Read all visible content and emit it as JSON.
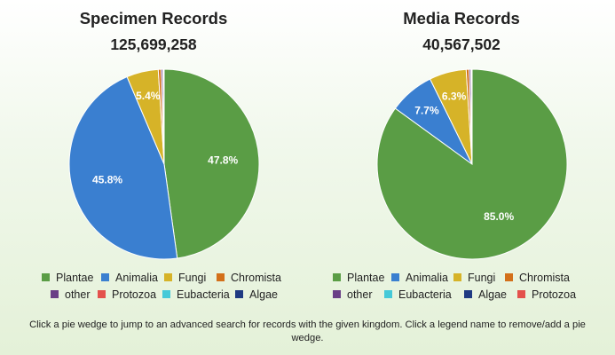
{
  "colors": {
    "Plantae": "#5a9d45",
    "Animalia": "#3a7fd0",
    "Fungi": "#d6b328",
    "Chromista": "#d3701a",
    "other": "#6a3f86",
    "Protozoa": "#e4514c",
    "Eubacteria": "#45c9d8",
    "Algae": "#1f3a82"
  },
  "specimen": {
    "title": "Specimen Records",
    "total": "125,699,258",
    "legend": [
      [
        "Plantae",
        "Animalia",
        "Fungi",
        "Chromista"
      ],
      [
        "other",
        "Protozoa",
        "Eubacteria",
        "Algae"
      ]
    ]
  },
  "media": {
    "title": "Media Records",
    "total": "40,567,502",
    "legend": [
      [
        "Plantae",
        "Animalia",
        "Fungi",
        "Chromista"
      ],
      [
        "other",
        "Eubacteria",
        "Algae",
        "Protozoa"
      ]
    ]
  },
  "chart_data": [
    {
      "type": "pie",
      "title": "Specimen Records",
      "subtitle": "125,699,258",
      "labels": [
        "Plantae",
        "Animalia",
        "Fungi",
        "Chromista",
        "other",
        "Protozoa",
        "Eubacteria",
        "Algae"
      ],
      "values": [
        47.8,
        45.8,
        5.4,
        0.5,
        0.3,
        0.1,
        0.05,
        0.05
      ],
      "data_labels": [
        "47.8%",
        "45.8%",
        "5.4%",
        "",
        "",
        "",
        "",
        ""
      ],
      "legend_position": "bottom"
    },
    {
      "type": "pie",
      "title": "Media Records",
      "subtitle": "40,567,502",
      "labels": [
        "Plantae",
        "Animalia",
        "Fungi",
        "Chromista",
        "other",
        "Eubacteria",
        "Algae",
        "Protozoa"
      ],
      "values": [
        85.0,
        7.7,
        6.3,
        0.5,
        0.3,
        0.1,
        0.05,
        0.05
      ],
      "data_labels": [
        "85.0%",
        "7.7%",
        "6.3%",
        "",
        "",
        "",
        "",
        ""
      ],
      "legend_position": "bottom"
    }
  ],
  "footer": {
    "text": "Click a pie wedge to jump to an advanced search for records with the given kingdom. Click a legend name to remove/add a pie wedge."
  }
}
